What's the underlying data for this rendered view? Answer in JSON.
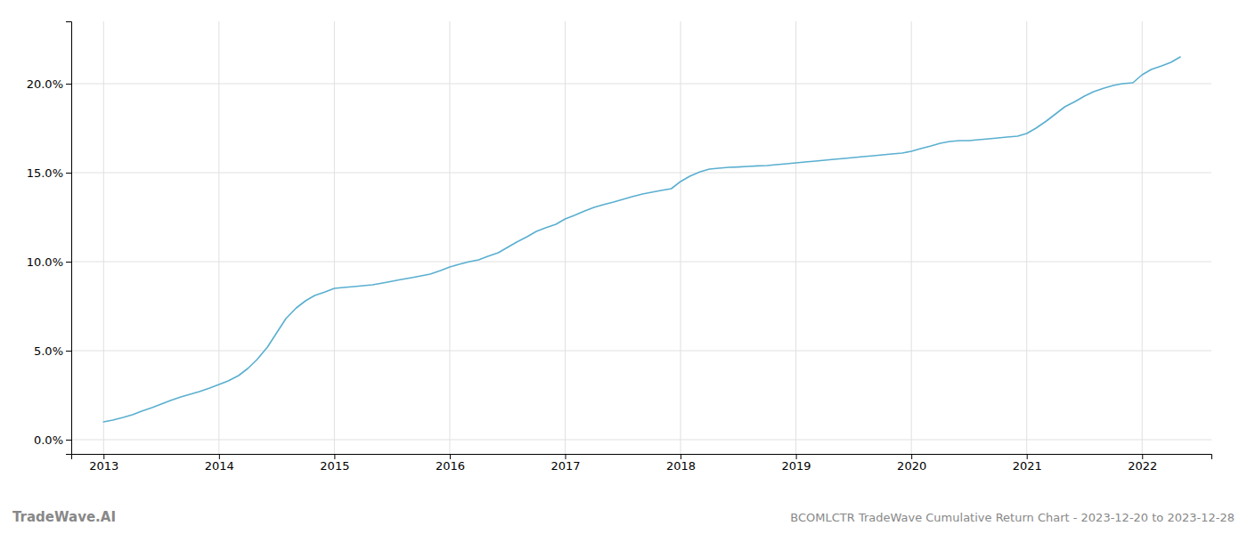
{
  "chart_data": {
    "type": "line",
    "title": "BCOMLCTR TradeWave Cumulative Return Chart - 2023-12-20 to 2023-12-28",
    "annotations": [
      "TradeWave.AI"
    ],
    "color": "#5aafd0",
    "grid": true,
    "x": [
      2013.0,
      2013.08,
      2013.17,
      2013.25,
      2013.33,
      2013.42,
      2013.5,
      2013.58,
      2013.67,
      2013.75,
      2013.83,
      2013.92,
      2014.0,
      2014.08,
      2014.17,
      2014.25,
      2014.33,
      2014.42,
      2014.5,
      2014.58,
      2014.67,
      2014.75,
      2014.83,
      2014.92,
      2015.0,
      2015.08,
      2015.17,
      2015.25,
      2015.33,
      2015.42,
      2015.5,
      2015.58,
      2015.67,
      2015.75,
      2015.83,
      2015.92,
      2016.0,
      2016.08,
      2016.17,
      2016.25,
      2016.33,
      2016.42,
      2016.5,
      2016.58,
      2016.67,
      2016.75,
      2016.83,
      2016.92,
      2017.0,
      2017.08,
      2017.17,
      2017.25,
      2017.33,
      2017.42,
      2017.5,
      2017.58,
      2017.67,
      2017.75,
      2017.83,
      2017.92,
      2018.0,
      2018.08,
      2018.17,
      2018.25,
      2018.33,
      2018.42,
      2018.5,
      2018.58,
      2018.67,
      2018.75,
      2018.83,
      2018.92,
      2019.0,
      2019.08,
      2019.17,
      2019.25,
      2019.33,
      2019.42,
      2019.5,
      2019.58,
      2019.67,
      2019.75,
      2019.83,
      2019.92,
      2020.0,
      2020.08,
      2020.17,
      2020.25,
      2020.33,
      2020.42,
      2020.5,
      2020.58,
      2020.67,
      2020.75,
      2020.83,
      2020.92,
      2021.0,
      2021.08,
      2021.17,
      2021.25,
      2021.33,
      2021.42,
      2021.5,
      2021.58,
      2021.67,
      2021.75,
      2021.83,
      2021.92,
      2022.0,
      2022.08,
      2022.17,
      2022.25,
      2022.33
    ],
    "values": [
      1.0,
      1.1,
      1.25,
      1.4,
      1.6,
      1.8,
      2.0,
      2.2,
      2.4,
      2.55,
      2.7,
      2.9,
      3.1,
      3.3,
      3.6,
      4.0,
      4.5,
      5.2,
      6.0,
      6.8,
      7.4,
      7.8,
      8.1,
      8.3,
      8.5,
      8.55,
      8.6,
      8.65,
      8.7,
      8.8,
      8.9,
      9.0,
      9.1,
      9.2,
      9.3,
      9.5,
      9.7,
      9.85,
      10.0,
      10.1,
      10.3,
      10.5,
      10.8,
      11.1,
      11.4,
      11.7,
      11.9,
      12.1,
      12.4,
      12.6,
      12.85,
      13.05,
      13.2,
      13.35,
      13.5,
      13.65,
      13.8,
      13.9,
      14.0,
      14.1,
      14.5,
      14.8,
      15.05,
      15.2,
      15.25,
      15.3,
      15.32,
      15.35,
      15.38,
      15.4,
      15.45,
      15.5,
      15.55,
      15.6,
      15.65,
      15.7,
      15.75,
      15.8,
      15.85,
      15.9,
      15.95,
      16.0,
      16.05,
      16.1,
      16.2,
      16.35,
      16.5,
      16.65,
      16.75,
      16.8,
      16.8,
      16.85,
      16.9,
      16.95,
      17.0,
      17.05,
      17.2,
      17.5,
      17.9,
      18.3,
      18.7,
      19.0,
      19.3,
      19.55,
      19.75,
      19.9,
      20.0,
      20.05,
      20.5,
      20.8,
      21.0,
      21.2,
      21.5
    ],
    "xlim": [
      2012.72,
      2022.6
    ],
    "xticks": [
      2013,
      2014,
      2015,
      2016,
      2017,
      2018,
      2019,
      2020,
      2021,
      2022
    ],
    "ylim": [
      -0.8,
      23.5
    ],
    "yticks": [
      {
        "value": 0.0,
        "label": "0.0%"
      },
      {
        "value": 5.0,
        "label": "5.0%"
      },
      {
        "value": 10.0,
        "label": "10.0%"
      },
      {
        "value": 15.0,
        "label": "15.0%"
      },
      {
        "value": 20.0,
        "label": "20.0%"
      }
    ]
  }
}
